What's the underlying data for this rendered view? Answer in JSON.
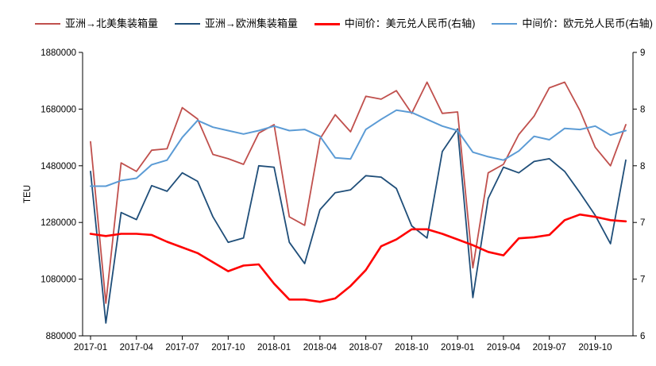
{
  "legend": [
    {
      "label": "亚洲→北美集装箱量",
      "color": "#C0504D",
      "stroke_width": 1.8
    },
    {
      "label": "亚洲→欧洲集装箱量",
      "color": "#1F4E79",
      "stroke_width": 1.8
    },
    {
      "label": "中间价：美元兑人民币(右轴)",
      "color": "#FF0000",
      "stroke_width": 2.6
    },
    {
      "label": "中间价：欧元兑人民币(右轴)",
      "color": "#5B9BD5",
      "stroke_width": 2.0
    }
  ],
  "chart_data": {
    "type": "line",
    "x": [
      "2017-01",
      "2017-02",
      "2017-03",
      "2017-04",
      "2017-05",
      "2017-06",
      "2017-07",
      "2017-08",
      "2017-09",
      "2017-10",
      "2017-11",
      "2017-12",
      "2018-01",
      "2018-02",
      "2018-03",
      "2018-04",
      "2018-05",
      "2018-06",
      "2018-07",
      "2018-08",
      "2018-09",
      "2018-10",
      "2018-11",
      "2018-12",
      "2019-01",
      "2019-02",
      "2019-03",
      "2019-04",
      "2019-05",
      "2019-06",
      "2019-07",
      "2019-08",
      "2019-09",
      "2019-10",
      "2019-11",
      "2019-12"
    ],
    "x_tick_labels": [
      "2017-01",
      "2017-04",
      "2017-07",
      "2017-10",
      "2018-01",
      "2018-04",
      "2018-07",
      "2018-10",
      "2019-01",
      "2019-04",
      "2019-07",
      "2019-10"
    ],
    "left_axis": {
      "title": "TEU",
      "min": 880000,
      "max": 1880000,
      "step": 200000,
      "tick_labels": [
        "1880000",
        "1680000",
        "1480000",
        "1280000",
        "1080000",
        "880000"
      ]
    },
    "right_axis": {
      "min": 6,
      "max": 8.5,
      "step": 0.5,
      "tick_labels": [
        "9",
        "8",
        "8",
        "7",
        "7",
        "6"
      ]
    },
    "grid": false,
    "legend_position": "top",
    "series": [
      {
        "name": "亚洲→北美集装箱量",
        "axis": "left",
        "color": "#C0504D",
        "stroke_width": 1.8,
        "values": [
          1565000,
          995000,
          1490000,
          1460000,
          1535000,
          1540000,
          1685000,
          1645000,
          1520000,
          1505000,
          1485000,
          1595000,
          1625000,
          1300000,
          1270000,
          1575000,
          1660000,
          1600000,
          1725000,
          1715000,
          1745000,
          1665000,
          1775000,
          1665000,
          1670000,
          1120000,
          1455000,
          1485000,
          1590000,
          1655000,
          1755000,
          1775000,
          1675000,
          1545000,
          1480000,
          1625000
        ]
      },
      {
        "name": "亚洲→欧洲集装箱量",
        "axis": "left",
        "color": "#1F4E79",
        "stroke_width": 1.8,
        "values": [
          1460000,
          925000,
          1315000,
          1290000,
          1410000,
          1390000,
          1455000,
          1425000,
          1300000,
          1210000,
          1225000,
          1480000,
          1475000,
          1210000,
          1135000,
          1325000,
          1385000,
          1395000,
          1445000,
          1440000,
          1400000,
          1268000,
          1225000,
          1530000,
          1610000,
          1015000,
          1365000,
          1475000,
          1455000,
          1495000,
          1505000,
          1460000,
          1385000,
          1305000,
          1205000,
          1500000
        ]
      },
      {
        "name": "中间价：美元兑人民币(右轴)",
        "axis": "right",
        "color": "#FF0000",
        "stroke_width": 2.6,
        "values": [
          6.9,
          6.88,
          6.9,
          6.9,
          6.89,
          6.83,
          6.78,
          6.73,
          6.65,
          6.57,
          6.62,
          6.63,
          6.46,
          6.32,
          6.32,
          6.3,
          6.33,
          6.44,
          6.58,
          6.79,
          6.85,
          6.94,
          6.94,
          6.9,
          6.85,
          6.8,
          6.74,
          6.71,
          6.86,
          6.87,
          6.89,
          7.02,
          7.07,
          7.05,
          7.02,
          7.01
        ]
      },
      {
        "name": "中间价：欧元兑人民币(右轴)",
        "axis": "right",
        "color": "#5B9BD5",
        "stroke_width": 2.0,
        "values": [
          7.32,
          7.32,
          7.37,
          7.39,
          7.51,
          7.55,
          7.75,
          7.9,
          7.84,
          7.81,
          7.78,
          7.81,
          7.85,
          7.81,
          7.82,
          7.76,
          7.57,
          7.56,
          7.82,
          7.91,
          7.99,
          7.97,
          7.91,
          7.85,
          7.81,
          7.62,
          7.58,
          7.55,
          7.63,
          7.76,
          7.73,
          7.83,
          7.82,
          7.85,
          7.77,
          7.81
        ]
      }
    ]
  }
}
